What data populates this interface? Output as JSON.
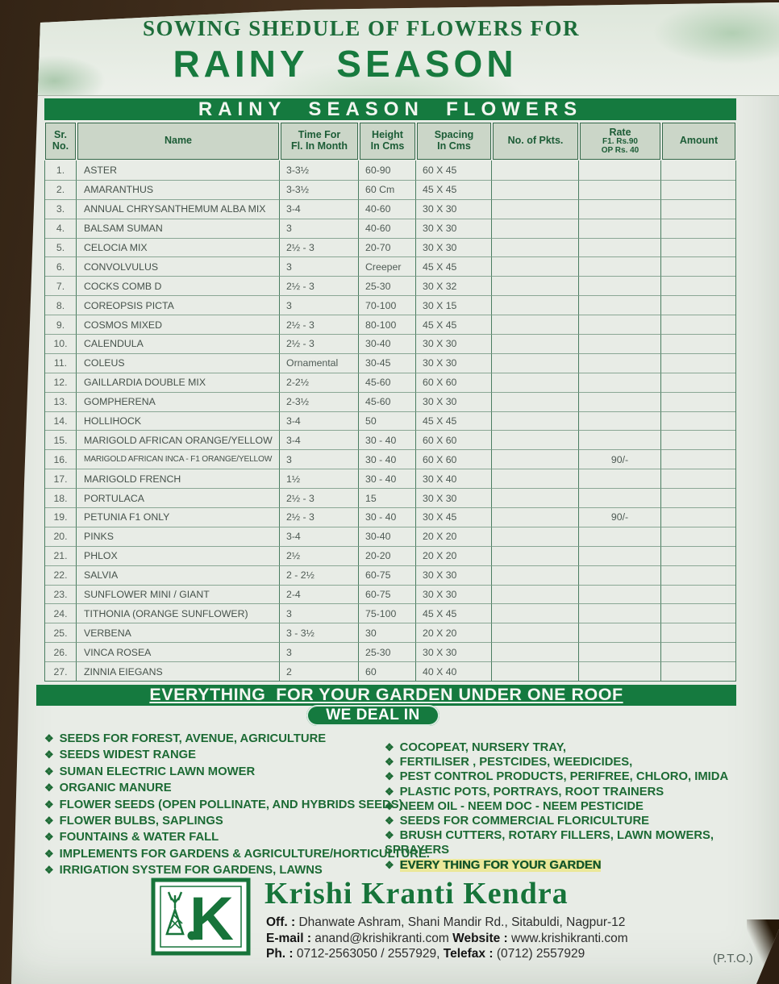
{
  "page": {
    "title_line": "SOWING SHEDULE OF FLOWERS FOR",
    "season_title": "RAINY  SEASON"
  },
  "colors": {
    "brand_green": "#157a3f",
    "title_green": "#1d6d3a",
    "paper": "#e8ece6",
    "highlight_yellow": "#eee45a"
  },
  "table": {
    "banner": "RAINY  SEASON  FLOWERS",
    "headers": [
      {
        "lines": [
          "Sr.",
          "No."
        ]
      },
      {
        "lines": [
          "Name"
        ]
      },
      {
        "lines": [
          "Time For",
          "Fl. In Month"
        ]
      },
      {
        "lines": [
          "Height",
          "In Cms"
        ]
      },
      {
        "lines": [
          "Spacing",
          "In Cms"
        ]
      },
      {
        "lines": [
          "No. of Pkts."
        ]
      },
      {
        "lines": [
          "Rate",
          "F1. Rs.90",
          "OP Rs. 40"
        ]
      },
      {
        "lines": [
          "Amount"
        ]
      }
    ],
    "rows": [
      {
        "sr": "1.",
        "name": "ASTER",
        "time": "3-3½",
        "height": "60-90",
        "spacing": "60 X 45",
        "pkts": "",
        "rate": "",
        "amount": ""
      },
      {
        "sr": "2.",
        "name": "AMARANTHUS",
        "time": "3-3½",
        "height": "60 Cm",
        "spacing": "45 X 45",
        "pkts": "",
        "rate": "",
        "amount": ""
      },
      {
        "sr": "3.",
        "name": "ANNUAL CHRYSANTHEMUM ALBA MIX",
        "time": "3-4",
        "height": "40-60",
        "spacing": "30 X 30",
        "pkts": "",
        "rate": "",
        "amount": ""
      },
      {
        "sr": "4.",
        "name": "BALSAM SUMAN",
        "time": "3",
        "height": "40-60",
        "spacing": "30 X 30",
        "pkts": "",
        "rate": "",
        "amount": ""
      },
      {
        "sr": "5.",
        "name": "CELOCIA MIX",
        "time": "2½ - 3",
        "height": "20-70",
        "spacing": "30 X 30",
        "pkts": "",
        "rate": "",
        "amount": ""
      },
      {
        "sr": "6.",
        "name": "CONVOLVULUS",
        "time": "3",
        "height": "Creeper",
        "spacing": "45 X 45",
        "pkts": "",
        "rate": "",
        "amount": ""
      },
      {
        "sr": "7.",
        "name": "COCKS COMB D",
        "time": "2½ - 3",
        "height": "25-30",
        "spacing": "30 X 32",
        "pkts": "",
        "rate": "",
        "amount": ""
      },
      {
        "sr": "8.",
        "name": "COREOPSIS PICTA",
        "time": "3",
        "height": "70-100",
        "spacing": "30 X 15",
        "pkts": "",
        "rate": "",
        "amount": ""
      },
      {
        "sr": "9.",
        "name": "COSMOS MIXED",
        "time": "2½ - 3",
        "height": "80-100",
        "spacing": "45 X 45",
        "pkts": "",
        "rate": "",
        "amount": ""
      },
      {
        "sr": "10.",
        "name": "CALENDULA",
        "time": "2½ - 3",
        "height": "30-40",
        "spacing": "30 X 30",
        "pkts": "",
        "rate": "",
        "amount": ""
      },
      {
        "sr": "11.",
        "name": "COLEUS",
        "time": "Ornamental",
        "height": "30-45",
        "spacing": "30 X 30",
        "pkts": "",
        "rate": "",
        "amount": ""
      },
      {
        "sr": "12.",
        "name": "GAILLARDIA DOUBLE MIX",
        "time": "2-2½",
        "height": "45-60",
        "spacing": "60 X 60",
        "pkts": "",
        "rate": "",
        "amount": ""
      },
      {
        "sr": "13.",
        "name": "GOMPHERENA",
        "time": "2-3½",
        "height": "45-60",
        "spacing": "30 X 30",
        "pkts": "",
        "rate": "",
        "amount": ""
      },
      {
        "sr": "14.",
        "name": "HOLLIHOCK",
        "time": "3-4",
        "height": "50",
        "spacing": "45 X 45",
        "pkts": "",
        "rate": "",
        "amount": ""
      },
      {
        "sr": "15.",
        "name": "MARIGOLD AFRICAN ORANGE/YELLOW",
        "time": "3-4",
        "height": "30 - 40",
        "spacing": "60 X 60",
        "pkts": "",
        "rate": "",
        "amount": ""
      },
      {
        "sr": "16.",
        "name": "MARIGOLD AFRICAN INCA - F1 ORANGE/YELLOW",
        "time": "3",
        "height": "30 - 40",
        "spacing": "60 X 60",
        "pkts": "",
        "rate": "90/-",
        "amount": ""
      },
      {
        "sr": "17.",
        "name": "MARIGOLD FRENCH",
        "time": "1½",
        "height": "30 - 40",
        "spacing": "30 X 40",
        "pkts": "",
        "rate": "",
        "amount": ""
      },
      {
        "sr": "18.",
        "name": "PORTULACA",
        "time": "2½ - 3",
        "height": "15",
        "spacing": "30 X 30",
        "pkts": "",
        "rate": "",
        "amount": ""
      },
      {
        "sr": "19.",
        "name": "PETUNIA F1 ONLY",
        "time": "2½ - 3",
        "height": "30 - 40",
        "spacing": "30 X 45",
        "pkts": "",
        "rate": "90/-",
        "amount": ""
      },
      {
        "sr": "20.",
        "name": "PINKS",
        "time": "3-4",
        "height": "30-40",
        "spacing": "20 X 20",
        "pkts": "",
        "rate": "",
        "amount": ""
      },
      {
        "sr": "21.",
        "name": "PHLOX",
        "time": "2½",
        "height": "20-20",
        "spacing": "20 X 20",
        "pkts": "",
        "rate": "",
        "amount": ""
      },
      {
        "sr": "22.",
        "name": "SALVIA",
        "time": "2 - 2½",
        "height": "60-75",
        "spacing": "30 X 30",
        "pkts": "",
        "rate": "",
        "amount": ""
      },
      {
        "sr": "23.",
        "name": "SUNFLOWER MINI / GIANT",
        "time": "2-4",
        "height": "60-75",
        "spacing": "30 X 30",
        "pkts": "",
        "rate": "",
        "amount": ""
      },
      {
        "sr": "24.",
        "name": "TITHONIA (ORANGE SUNFLOWER)",
        "time": "3",
        "height": "75-100",
        "spacing": "45 X 45",
        "pkts": "",
        "rate": "",
        "amount": ""
      },
      {
        "sr": "25.",
        "name": "VERBENA",
        "time": "3 - 3½",
        "height": "30",
        "spacing": "20 X 20",
        "pkts": "",
        "rate": "",
        "amount": ""
      },
      {
        "sr": "26.",
        "name": "VINCA ROSEA",
        "time": "3",
        "height": "25-30",
        "spacing": "30 X 30",
        "pkts": "",
        "rate": "",
        "amount": ""
      },
      {
        "sr": "27.",
        "name": "ZINNIA EIEGANS",
        "time": "2",
        "height": "60",
        "spacing": "40 X 40",
        "pkts": "",
        "rate": "",
        "amount": ""
      }
    ]
  },
  "banners": {
    "everything": "EVERYTHING  FOR YOUR GARDEN UNDER ONE ROOF",
    "we_deal_in": "WE DEAL IN"
  },
  "deal_in": {
    "bullet": "❖",
    "left": [
      {
        "text": "SEEDS FOR FOREST, AVENUE, AGRICULTURE"
      },
      {
        "text": "SEEDS WIDEST RANGE"
      },
      {
        "text": "SUMAN ELECTRIC LAWN MOWER"
      },
      {
        "text": "ORGANIC MANURE"
      },
      {
        "text": "FLOWER SEEDS (OPEN POLLINATE, AND HYBRIDS SEEDS)"
      },
      {
        "text": "FLOWER BULBS, SAPLINGS"
      },
      {
        "text": "FOUNTAINS & WATER FALL"
      },
      {
        "text": "IMPLEMENTS FOR GARDENS & AGRICULTURE/HORTICULTURE."
      },
      {
        "text": "IRRIGATION SYSTEM FOR GARDENS, LAWNS"
      }
    ],
    "right": [
      {
        "text": "COCOPEAT, NURSERY TRAY,"
      },
      {
        "text": "FERTILISER , PESTCIDES, WEEDICIDES,"
      },
      {
        "text": "PEST CONTROL PRODUCTS, PERIFREE, CHLORO, IMIDA"
      },
      {
        "text": "PLASTIC POTS, PORTRAYS, ROOT TRAINERS"
      },
      {
        "text": "NEEM OIL - NEEM DOC - NEEM PESTICIDE"
      },
      {
        "text": "SEEDS FOR COMMERCIAL FLORICULTURE"
      },
      {
        "text": "BRUSH CUTTERS, ROTARY FILLERS, LAWN MOWERS, SPRAYERS"
      },
      {
        "text": "EVERY THING FOR YOUR GARDEN",
        "strong": true
      }
    ]
  },
  "footer": {
    "company": "Krishi Kranti Kendra",
    "logo_letter": "K",
    "lines": [
      [
        {
          "b": "Off. :"
        },
        {
          "t": " Dhanwate Ashram, Shani Mandir Rd., Sitabuldi, Nagpur-12"
        }
      ],
      [
        {
          "b": "E-mail :"
        },
        {
          "t": " anand@krishikranti.com  "
        },
        {
          "b": "Website :"
        },
        {
          "t": " www.krishikranti.com"
        }
      ],
      [
        {
          "b": "Ph. :"
        },
        {
          "t": " 0712-2563050 / 2557929, "
        },
        {
          "b": "Telefax :"
        },
        {
          "t": " (0712) 2557929"
        }
      ]
    ],
    "pto": "(P.T.O.)"
  }
}
